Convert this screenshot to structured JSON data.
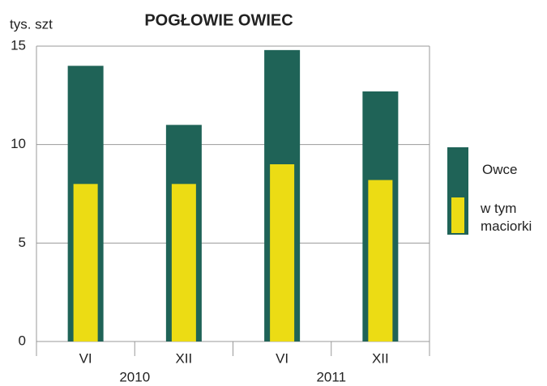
{
  "chart_data": {
    "type": "overlap-bar",
    "title": "POGŁOWIE  OWIEC",
    "y_label": "tys. szt",
    "categories": [
      "VI",
      "XII",
      "VI",
      "XII"
    ],
    "x_groups": [
      "2010",
      "2011"
    ],
    "series": [
      {
        "name": "Owce",
        "color": "#1f6357",
        "values": [
          14,
          11,
          14.8,
          12.7
        ]
      },
      {
        "name": "w tym maciorki",
        "color": "#ecdc14",
        "values": [
          8,
          8,
          9,
          8.2
        ]
      }
    ],
    "ylim": [
      0,
      15
    ],
    "yticks": [
      0,
      5,
      10,
      15
    ],
    "grid": true
  }
}
